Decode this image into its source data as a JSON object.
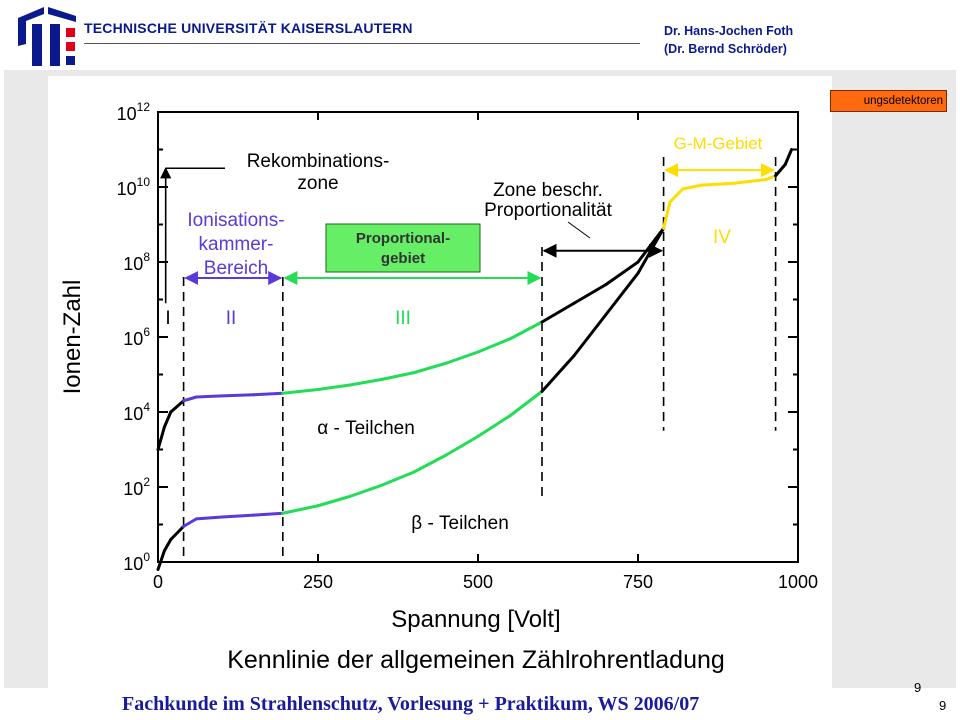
{
  "header": {
    "university": "TECHNISCHE UNIVERSITÄT KAISERSLAUTERN",
    "author_line1": "Dr. Hans-Jochen Foth",
    "author_line2": "(Dr. Bernd Schröder)"
  },
  "section_tag": "ungsdetektoren",
  "footer": {
    "course": "Fachkunde im Strahlenschutz, Vorlesung + Praktikum, WS 2006/07",
    "page_a": "9",
    "page_b": "9"
  },
  "colors": {
    "brand_blue": "#0a1a8c",
    "footer_blue": "#1a1a9c",
    "tag_orange": "#ff6a10",
    "region_purple": "#5a3ad8",
    "region_green": "#22dd55",
    "region_yellow": "#ffdd00",
    "proportional_box": "#66ee66",
    "curve_black": "#000000"
  },
  "chart_data": {
    "type": "line",
    "title": "Kennlinie der allgemeinen Zählrohrentladung",
    "xlabel": "Spannung [Volt]",
    "ylabel": "Ionen-Zahl",
    "xlim": [
      0,
      1000
    ],
    "ylim_log10": [
      0,
      12
    ],
    "y_scale": "log",
    "x_ticks": [
      "0",
      "250",
      "500",
      "750",
      "1000"
    ],
    "x_tick_values": [
      0,
      250,
      500,
      750,
      1000
    ],
    "y_ticks": [
      {
        "base": "10",
        "exp": "0",
        "value": 0
      },
      {
        "base": "10",
        "exp": "2",
        "value": 2
      },
      {
        "base": "10",
        "exp": "4",
        "value": 4
      },
      {
        "base": "10",
        "exp": "6",
        "value": 6
      },
      {
        "base": "10",
        "exp": "8",
        "value": 8
      },
      {
        "base": "10",
        "exp": "10",
        "value": 10
      },
      {
        "base": "10",
        "exp": "12",
        "value": 12
      }
    ],
    "boundaries_v": [
      40,
      195,
      600,
      790,
      965
    ],
    "series": [
      {
        "name": "α - Teilchen",
        "x": [
          0,
          10,
          20,
          40,
          60,
          100,
          150,
          195,
          250,
          300,
          350,
          400,
          450,
          500,
          550,
          600,
          650,
          700,
          750,
          790
        ],
        "log10_y": [
          3.0,
          3.6,
          4.0,
          4.3,
          4.4,
          4.43,
          4.46,
          4.5,
          4.6,
          4.72,
          4.87,
          5.05,
          5.3,
          5.6,
          5.95,
          6.4,
          6.9,
          7.4,
          8.0,
          8.9
        ]
      },
      {
        "name": "β - Teilchen",
        "x": [
          0,
          10,
          20,
          40,
          60,
          100,
          150,
          195,
          250,
          300,
          350,
          400,
          450,
          500,
          550,
          600,
          650,
          700,
          750,
          790
        ],
        "log10_y": [
          -0.2,
          0.3,
          0.6,
          0.95,
          1.15,
          1.2,
          1.25,
          1.3,
          1.5,
          1.75,
          2.05,
          2.4,
          2.85,
          3.35,
          3.9,
          4.55,
          5.5,
          6.6,
          7.7,
          8.9
        ]
      },
      {
        "name": "G-M",
        "x": [
          790,
          800,
          820,
          850,
          900,
          950,
          965,
          980,
          990
        ],
        "log10_y": [
          8.9,
          9.6,
          9.95,
          10.05,
          10.1,
          10.2,
          10.3,
          10.6,
          11.0
        ]
      }
    ],
    "labels": {
      "recomb": [
        "Rekombinations-",
        "zone"
      ],
      "ionisation": [
        "Ionisations-",
        "kammer-",
        "Bereich"
      ],
      "proportional": [
        "Proportional-",
        "gebiet"
      ],
      "zone_beschr": [
        "Zone beschr.",
        "Proportionalität"
      ],
      "gm": "G-M-Gebiet",
      "roman": [
        "I",
        "II",
        "III",
        "IV"
      ],
      "alpha": "α - Teilchen",
      "beta": "β - Teilchen"
    }
  }
}
